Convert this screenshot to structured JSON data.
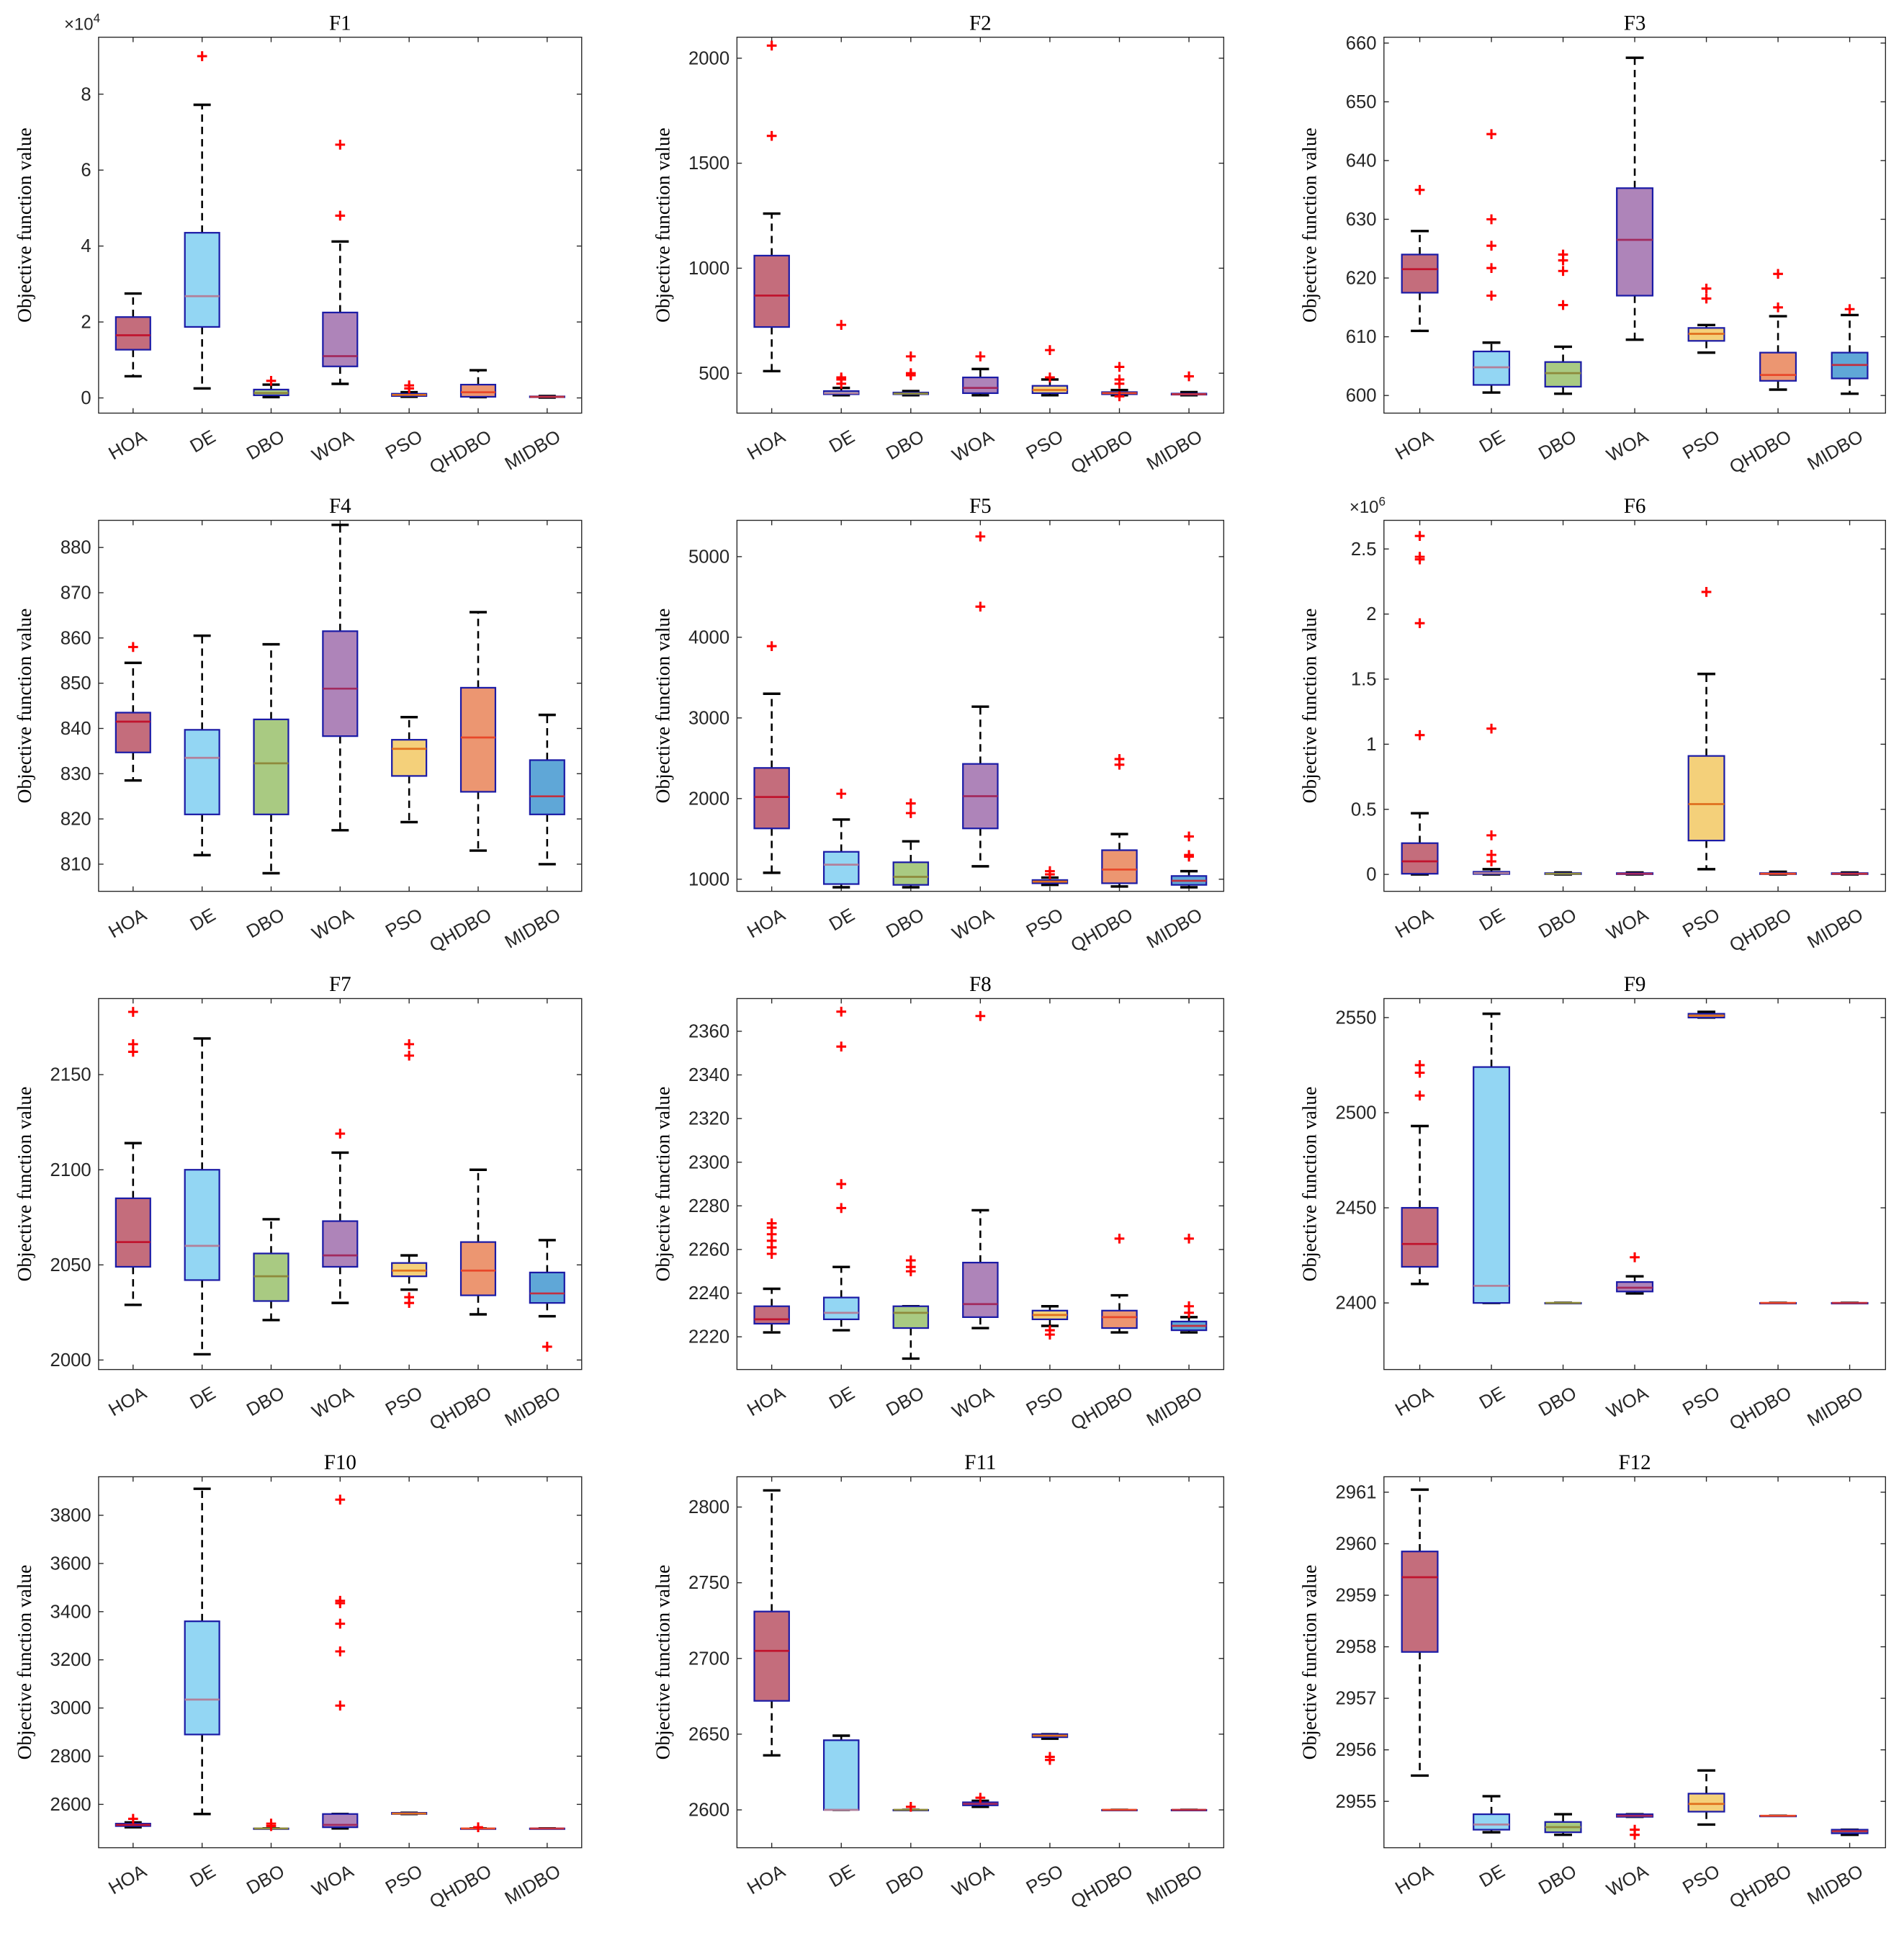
{
  "chart_data": {
    "type": "box",
    "categories": [
      "HOA",
      "DE",
      "DBO",
      "WOA",
      "PSO",
      "QHDBO",
      "MIDBO"
    ],
    "ylabel": "Objective function value",
    "colors": {
      "HOA": "#c46d7c",
      "DE": "#93d6f3",
      "DBO": "#a9ca82",
      "WOA": "#ae84b9",
      "PSO": "#f4d07a",
      "QHDBO": "#ec9671",
      "MIDBO": "#5fa7d7",
      "box_edge": "#1b1ba6",
      "outlier": "#ff0000",
      "whisker": "#000000"
    },
    "median_colors": {
      "HOA": "#c0142e",
      "DE": "#b2809a",
      "DBO": "#8e8a3c",
      "WOA": "#a22a5e",
      "PSO": "#e0701e",
      "QHDBO": "#e8482a",
      "MIDBO": "#c03040"
    },
    "panels": [
      {
        "title": "F1",
        "multiplier": "×10",
        "multiplier_exp": "4",
        "ylim": [
          -0.4,
          9.5
        ],
        "yticks": [
          "0",
          "2",
          "4",
          "6",
          "8"
        ],
        "ytick_values": [
          0,
          2,
          4,
          6,
          8
        ],
        "boxes": [
          [
            0.57,
            1.27,
            1.65,
            2.13,
            2.75,
            []
          ],
          [
            0.25,
            1.87,
            2.68,
            4.35,
            7.72,
            [
              9.0
            ]
          ],
          [
            0.02,
            0.07,
            0.13,
            0.22,
            0.35,
            [
              0.45
            ]
          ],
          [
            0.37,
            0.83,
            1.1,
            2.25,
            4.12,
            [
              4.8,
              6.67
            ]
          ],
          [
            0.03,
            0.05,
            0.08,
            0.11,
            0.15,
            [
              0.25,
              0.33
            ]
          ],
          [
            0.02,
            0.03,
            0.15,
            0.35,
            0.73,
            []
          ],
          [
            0.01,
            0.02,
            0.03,
            0.04,
            0.05,
            []
          ]
        ]
      },
      {
        "title": "F2",
        "ylim": [
          310,
          2100
        ],
        "yticks": [
          "500",
          "1000",
          "1500",
          "2000"
        ],
        "ytick_values": [
          500,
          1000,
          1500,
          2000
        ],
        "boxes": [
          [
            510,
            720,
            870,
            1060,
            1260,
            [
              1630,
              2060
            ]
          ],
          [
            395,
            400,
            405,
            415,
            430,
            [
              450,
              470,
              480,
              730
            ]
          ],
          [
            395,
            400,
            403,
            408,
            415,
            [
              490,
              500,
              580
            ]
          ],
          [
            395,
            405,
            430,
            480,
            520,
            [
              580
            ]
          ],
          [
            395,
            405,
            420,
            440,
            470,
            [
              480,
              610
            ]
          ],
          [
            395,
            400,
            405,
            410,
            420,
            [
              390,
              450,
              470,
              530
            ]
          ],
          [
            395,
            398,
            400,
            403,
            410,
            [
              485
            ]
          ]
        ]
      },
      {
        "title": "F3",
        "ylim": [
          597,
          661
        ],
        "yticks": [
          "600",
          "610",
          "620",
          "630",
          "640",
          "650",
          "660"
        ],
        "ytick_values": [
          600,
          610,
          620,
          630,
          640,
          650,
          660
        ],
        "boxes": [
          [
            611,
            617.5,
            621.5,
            624,
            628,
            [
              635
            ]
          ],
          [
            600.5,
            601.8,
            604.8,
            607.5,
            609,
            [
              617,
              621.7,
              625.5,
              630,
              644.5
            ]
          ],
          [
            600.3,
            601.5,
            603.8,
            605.7,
            608.3,
            [
              615.4,
              621.2,
              623,
              624
            ]
          ],
          [
            609.5,
            617,
            626.5,
            635.3,
            657.5,
            []
          ],
          [
            607.3,
            609.3,
            610.5,
            611.5,
            612,
            [
              616.5,
              618.2
            ]
          ],
          [
            601,
            602.5,
            603.5,
            607.3,
            613.5,
            [
              615,
              620.7
            ]
          ],
          [
            600.3,
            602.9,
            605.2,
            607.3,
            613.7,
            [
              614.7
            ]
          ]
        ]
      },
      {
        "title": "F4",
        "ylim": [
          804,
          886
        ],
        "yticks": [
          "810",
          "820",
          "830",
          "840",
          "850",
          "860",
          "870",
          "880"
        ],
        "ytick_values": [
          810,
          820,
          830,
          840,
          850,
          860,
          870,
          880
        ],
        "boxes": [
          [
            828.5,
            834.7,
            841.5,
            843.5,
            854.5,
            [
              858
            ]
          ],
          [
            812,
            821,
            833.5,
            839.7,
            860.5,
            []
          ],
          [
            808,
            821,
            832.3,
            842,
            858.6,
            []
          ],
          [
            817.5,
            838.3,
            848.8,
            861.5,
            885,
            []
          ],
          [
            819.3,
            829.5,
            835.5,
            837.5,
            842.5,
            []
          ],
          [
            813,
            826,
            838,
            849,
            865.7,
            []
          ],
          [
            810,
            821,
            825,
            833,
            843,
            []
          ]
        ]
      },
      {
        "title": "F5",
        "ylim": [
          850,
          5450
        ],
        "yticks": [
          "1000",
          "2000",
          "3000",
          "4000",
          "5000"
        ],
        "ytick_values": [
          1000,
          2000,
          3000,
          4000,
          5000
        ],
        "boxes": [
          [
            1080,
            1630,
            2020,
            2380,
            3300,
            [
              3890
            ]
          ],
          [
            900,
            940,
            1180,
            1340,
            1740,
            [
              2060
            ]
          ],
          [
            900,
            930,
            1030,
            1210,
            1470,
            [
              1820,
              1940
            ]
          ],
          [
            1160,
            1630,
            2030,
            2430,
            3140,
            [
              4380,
              5250
            ]
          ],
          [
            930,
            950,
            970,
            990,
            1020,
            [
              1060,
              1100
            ]
          ],
          [
            910,
            950,
            1120,
            1360,
            1560,
            [
              2420,
              2490
            ]
          ],
          [
            900,
            930,
            980,
            1040,
            1100,
            [
              1280,
              1300,
              1530
            ]
          ]
        ]
      },
      {
        "title": "F6",
        "multiplier": "×10",
        "multiplier_exp": "6",
        "ylim": [
          -0.13,
          2.72
        ],
        "yticks": [
          "0",
          "0.5",
          "1",
          "1.5",
          "2",
          "2.5"
        ],
        "ytick_values": [
          0,
          0.5,
          1,
          1.5,
          2,
          2.5
        ],
        "boxes": [
          [
            0,
            0.005,
            0.1,
            0.24,
            0.47,
            [
              1.07,
              1.93,
              2.42,
              2.44,
              2.6
            ]
          ],
          [
            0,
            0.003,
            0.01,
            0.02,
            0.04,
            [
              0.1,
              0.15,
              0.3,
              1.12
            ]
          ],
          [
            0,
            0.002,
            0.005,
            0.01,
            0.015,
            []
          ],
          [
            0,
            0.002,
            0.005,
            0.01,
            0.015,
            []
          ],
          [
            0.04,
            0.26,
            0.54,
            0.91,
            1.54,
            [
              2.17
            ]
          ],
          [
            0,
            0.002,
            0.005,
            0.01,
            0.02,
            []
          ],
          [
            0,
            0.002,
            0.005,
            0.01,
            0.015,
            []
          ]
        ]
      },
      {
        "title": "F7",
        "ylim": [
          1995,
          2190
        ],
        "yticks": [
          "2000",
          "2050",
          "2100",
          "2150"
        ],
        "ytick_values": [
          2000,
          2050,
          2100,
          2150
        ],
        "boxes": [
          [
            2029,
            2049,
            2062,
            2085,
            2114,
            [
              2162,
              2166,
              2183
            ]
          ],
          [
            2003,
            2042,
            2060,
            2100,
            2169,
            []
          ],
          [
            2021,
            2031,
            2044,
            2056,
            2074,
            []
          ],
          [
            2030,
            2049,
            2055,
            2073,
            2109,
            [
              2119
            ]
          ],
          [
            2037,
            2044,
            2047,
            2051,
            2055,
            [
              2030,
              2033,
              2160,
              2166
            ]
          ],
          [
            2024,
            2034,
            2047,
            2062,
            2100,
            []
          ],
          [
            2023,
            2030,
            2035,
            2046,
            2063,
            [
              2007
            ]
          ]
        ]
      },
      {
        "title": "F8",
        "ylim": [
          2205,
          2375
        ],
        "yticks": [
          "2220",
          "2240",
          "2260",
          "2280",
          "2300",
          "2320",
          "2340",
          "2360"
        ],
        "ytick_values": [
          2220,
          2240,
          2260,
          2280,
          2300,
          2320,
          2340,
          2360
        ],
        "boxes": [
          [
            2222,
            2226,
            2228,
            2234,
            2242,
            [
              2258,
              2261,
              2264,
              2267,
              2270,
              2272
            ]
          ],
          [
            2223,
            2228,
            2231,
            2238,
            2252,
            [
              2279,
              2290,
              2353,
              2369
            ]
          ],
          [
            2210,
            2224,
            2231,
            2234,
            2234,
            [
              2250,
              2252,
              2255
            ]
          ],
          [
            2224,
            2229,
            2235,
            2254,
            2278,
            [
              2367
            ]
          ],
          [
            2225,
            2228,
            2230,
            2232,
            2234,
            [
              2221,
              2223
            ]
          ],
          [
            2222,
            2224,
            2229,
            2232,
            2239,
            [
              2265
            ]
          ],
          [
            2222,
            2223,
            2225,
            2227,
            2229,
            [
              2231,
              2234,
              2265
            ]
          ]
        ]
      },
      {
        "title": "F9",
        "ylim": [
          2365,
          2560
        ],
        "yticks": [
          "2400",
          "2450",
          "2500",
          "2550"
        ],
        "ytick_values": [
          2400,
          2450,
          2500,
          2550
        ],
        "boxes": [
          [
            2410,
            2419,
            2431,
            2450,
            2493,
            [
              2509,
              2521,
              2525
            ]
          ],
          [
            2400,
            2400,
            2409,
            2524,
            2552,
            []
          ],
          [
            2400,
            2400,
            2400,
            2400,
            2400,
            []
          ],
          [
            2405,
            2406,
            2408,
            2411,
            2414,
            [
              2424
            ]
          ],
          [
            2550,
            2550,
            2551,
            2552,
            2553,
            []
          ],
          [
            2400,
            2400,
            2400,
            2400,
            2400,
            []
          ],
          [
            2400,
            2400,
            2400,
            2400,
            2400,
            []
          ]
        ]
      },
      {
        "title": "F10",
        "ylim": [
          2420,
          3960
        ],
        "yticks": [
          "2600",
          "2800",
          "3000",
          "3200",
          "3400",
          "3600",
          "3800"
        ],
        "ytick_values": [
          2600,
          2800,
          3000,
          3200,
          3400,
          3600,
          3800
        ],
        "boxes": [
          [
            2505,
            2510,
            2515,
            2520,
            2525,
            [
              2540
            ]
          ],
          [
            2560,
            2890,
            3035,
            3360,
            3910,
            []
          ],
          [
            2500,
            2500,
            2500,
            2500,
            2500,
            [
              2510,
              2520
            ]
          ],
          [
            2500,
            2505,
            2515,
            2560,
            2560,
            [
              3010,
              3235,
              3350,
              3435,
              3445,
              3865
            ]
          ],
          [
            2560,
            2560,
            2562,
            2565,
            2565,
            []
          ],
          [
            2500,
            2500,
            2500,
            2500,
            2500,
            [
              2505
            ]
          ],
          [
            2500,
            2500,
            2500,
            2500,
            2500,
            []
          ]
        ]
      },
      {
        "title": "F11",
        "ylim": [
          2575,
          2820
        ],
        "yticks": [
          "2600",
          "2650",
          "2700",
          "2750",
          "2800"
        ],
        "ytick_values": [
          2600,
          2650,
          2700,
          2750,
          2800
        ],
        "boxes": [
          [
            2636,
            2672,
            2705,
            2731,
            2811,
            []
          ],
          [
            2600,
            2600,
            2600,
            2646,
            2649,
            []
          ],
          [
            2600,
            2600,
            2600,
            2600,
            2600,
            [
              2602
            ]
          ],
          [
            2602,
            2603,
            2604,
            2605,
            2606,
            [
              2608
            ]
          ],
          [
            2647,
            2648,
            2649,
            2650,
            2650,
            [
              2633,
              2635
            ]
          ],
          [
            2600,
            2600,
            2600,
            2600,
            2600,
            []
          ],
          [
            2600,
            2600,
            2600,
            2600,
            2600,
            []
          ]
        ]
      },
      {
        "title": "F12",
        "ylim": [
          2954.1,
          2961.3
        ],
        "yticks": [
          "2955",
          "2956",
          "2957",
          "2958",
          "2959",
          "2960",
          "2961"
        ],
        "ytick_values": [
          2955,
          2956,
          2957,
          2958,
          2959,
          2960,
          2961
        ],
        "boxes": [
          [
            2955.5,
            2957.9,
            2959.35,
            2959.85,
            2961.05,
            []
          ],
          [
            2954.4,
            2954.45,
            2954.55,
            2954.75,
            2955.1,
            []
          ],
          [
            2954.35,
            2954.4,
            2954.5,
            2954.6,
            2954.75,
            []
          ],
          [
            2954.7,
            2954.7,
            2954.72,
            2954.75,
            2954.75,
            [
              2954.35,
              2954.45
            ]
          ],
          [
            2954.55,
            2954.8,
            2954.95,
            2955.15,
            2955.6,
            []
          ],
          [
            2954.72,
            2954.72,
            2954.72,
            2954.72,
            2954.72,
            []
          ],
          [
            2954.35,
            2954.38,
            2954.42,
            2954.45,
            2954.45,
            []
          ]
        ]
      }
    ]
  }
}
